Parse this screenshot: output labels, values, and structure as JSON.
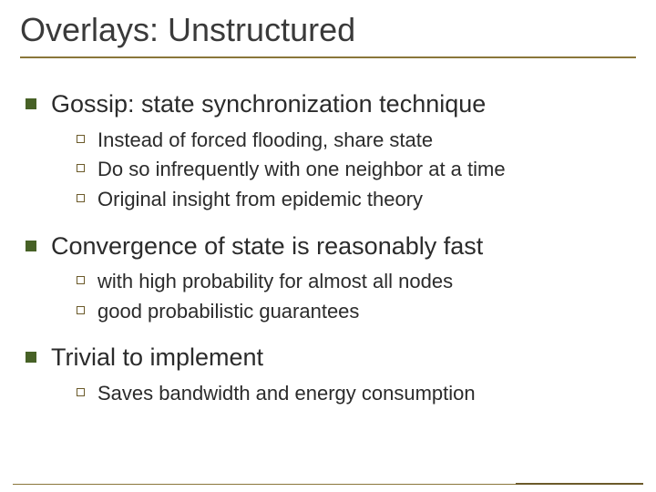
{
  "title": "Overlays: Unstructured",
  "colors": {
    "title_text": "#3a3a3a",
    "body_text": "#2b2b2b",
    "bullet_lvl1": "#476126",
    "bullet_lvl2_border": "#6b5a2a",
    "rule_line": "#8a763a",
    "background": "#ffffff"
  },
  "typography": {
    "title_fontsize": 36,
    "lvl1_fontsize": 27,
    "lvl2_fontsize": 22,
    "font_family": "Arial"
  },
  "bullets": [
    {
      "text": "Gossip: state synchronization technique",
      "sub": [
        "Instead of forced flooding, share state",
        "Do so infrequently with one neighbor at a time",
        "Original insight from epidemic theory"
      ]
    },
    {
      "text": "Convergence of state is reasonably fast",
      "sub": [
        "with high probability for almost all nodes",
        "good probabilistic guarantees"
      ]
    },
    {
      "text": "Trivial to implement",
      "sub": [
        "Saves bandwidth and energy consumption"
      ]
    }
  ]
}
